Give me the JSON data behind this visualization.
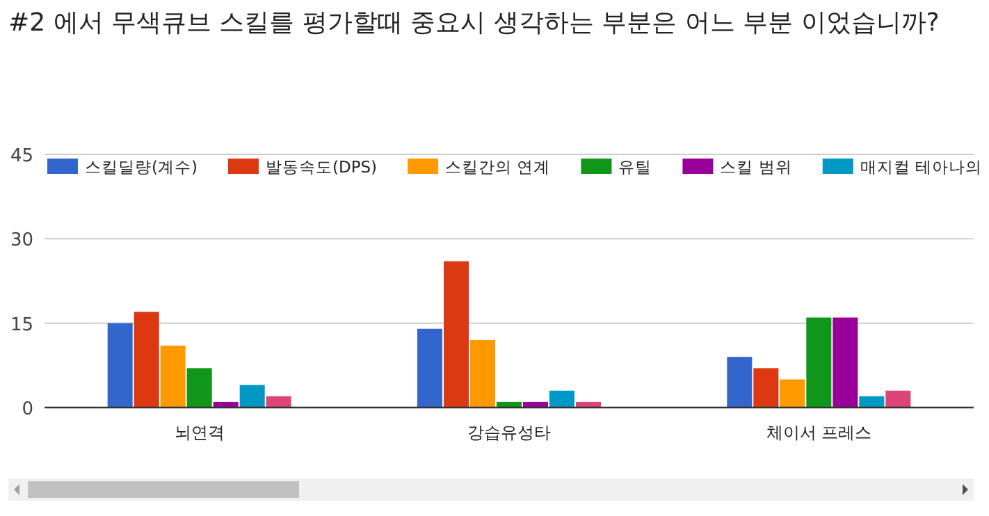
{
  "chart_data": {
    "type": "bar",
    "title": "#2 에서 무색큐브 스킬를 평가할때 중요시 생각하는 부분은 어느 부분 이었습니까?",
    "categories": [
      "뇌연격",
      "강습유성타",
      "체이서 프레스"
    ],
    "series": [
      {
        "name": "스킬딜량(계수)",
        "color": "#3366cc",
        "values": [
          15,
          14,
          9
        ]
      },
      {
        "name": "발동속도(DPS)",
        "color": "#dc3912",
        "values": [
          17,
          26,
          7
        ]
      },
      {
        "name": "스킬간의 연계",
        "color": "#ff9900",
        "values": [
          11,
          12,
          5
        ]
      },
      {
        "name": "유틸",
        "color": "#109618",
        "values": [
          7,
          1,
          16
        ]
      },
      {
        "name": "스킬 범위",
        "color": "#990099",
        "values": [
          1,
          1,
          16
        ]
      },
      {
        "name": "매지컬 테아나의",
        "color": "#0099c6",
        "values": [
          4,
          3,
          2
        ]
      },
      {
        "color": "#dd4477",
        "values": [
          2,
          1,
          3
        ]
      }
    ],
    "ylim": [
      0,
      45
    ],
    "yticks": [
      0,
      15,
      30,
      45
    ],
    "grid": "y",
    "legend": "top"
  }
}
